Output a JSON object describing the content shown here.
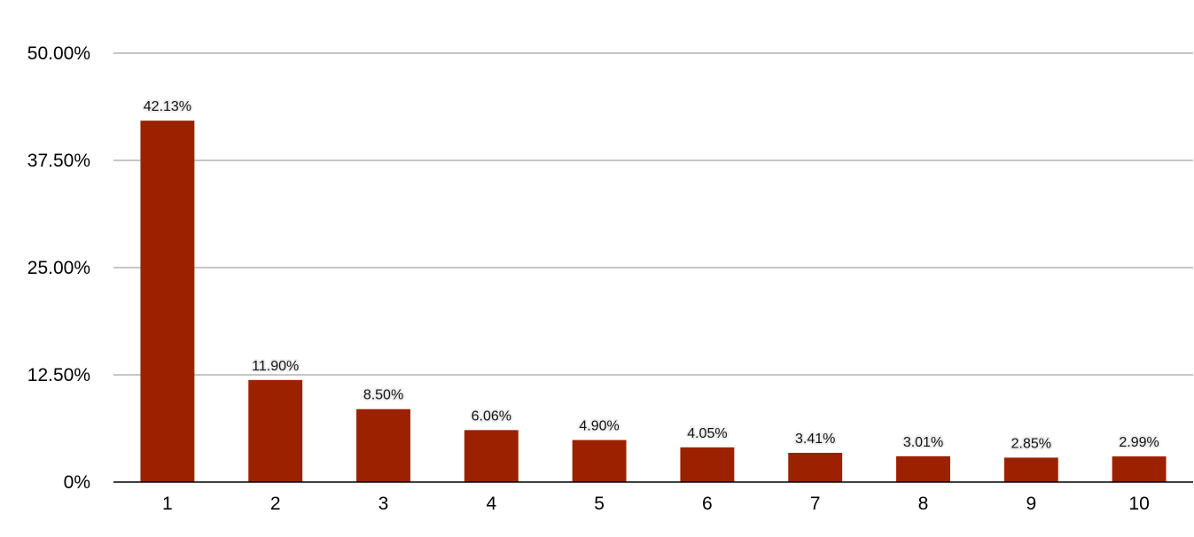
{
  "chart_data": {
    "type": "bar",
    "categories": [
      "1",
      "2",
      "3",
      "4",
      "5",
      "6",
      "7",
      "8",
      "9",
      "10"
    ],
    "values": [
      42.13,
      11.9,
      8.5,
      6.06,
      4.9,
      4.05,
      3.41,
      3.01,
      2.85,
      2.99
    ],
    "data_labels": [
      "42.13%",
      "11.90%",
      "8.50%",
      "6.06%",
      "4.90%",
      "4.05%",
      "3.41%",
      "3.01%",
      "2.85%",
      "2.99%"
    ],
    "ylim": [
      0,
      50
    ],
    "yticks": [
      0,
      12.5,
      25,
      37.5,
      50
    ],
    "ytick_labels": [
      "0%",
      "12.50%",
      "25.00%",
      "37.50%",
      "50.00%"
    ],
    "grid": true,
    "bar_color": "#9c2100",
    "grid_color": "#b3b3b3"
  }
}
